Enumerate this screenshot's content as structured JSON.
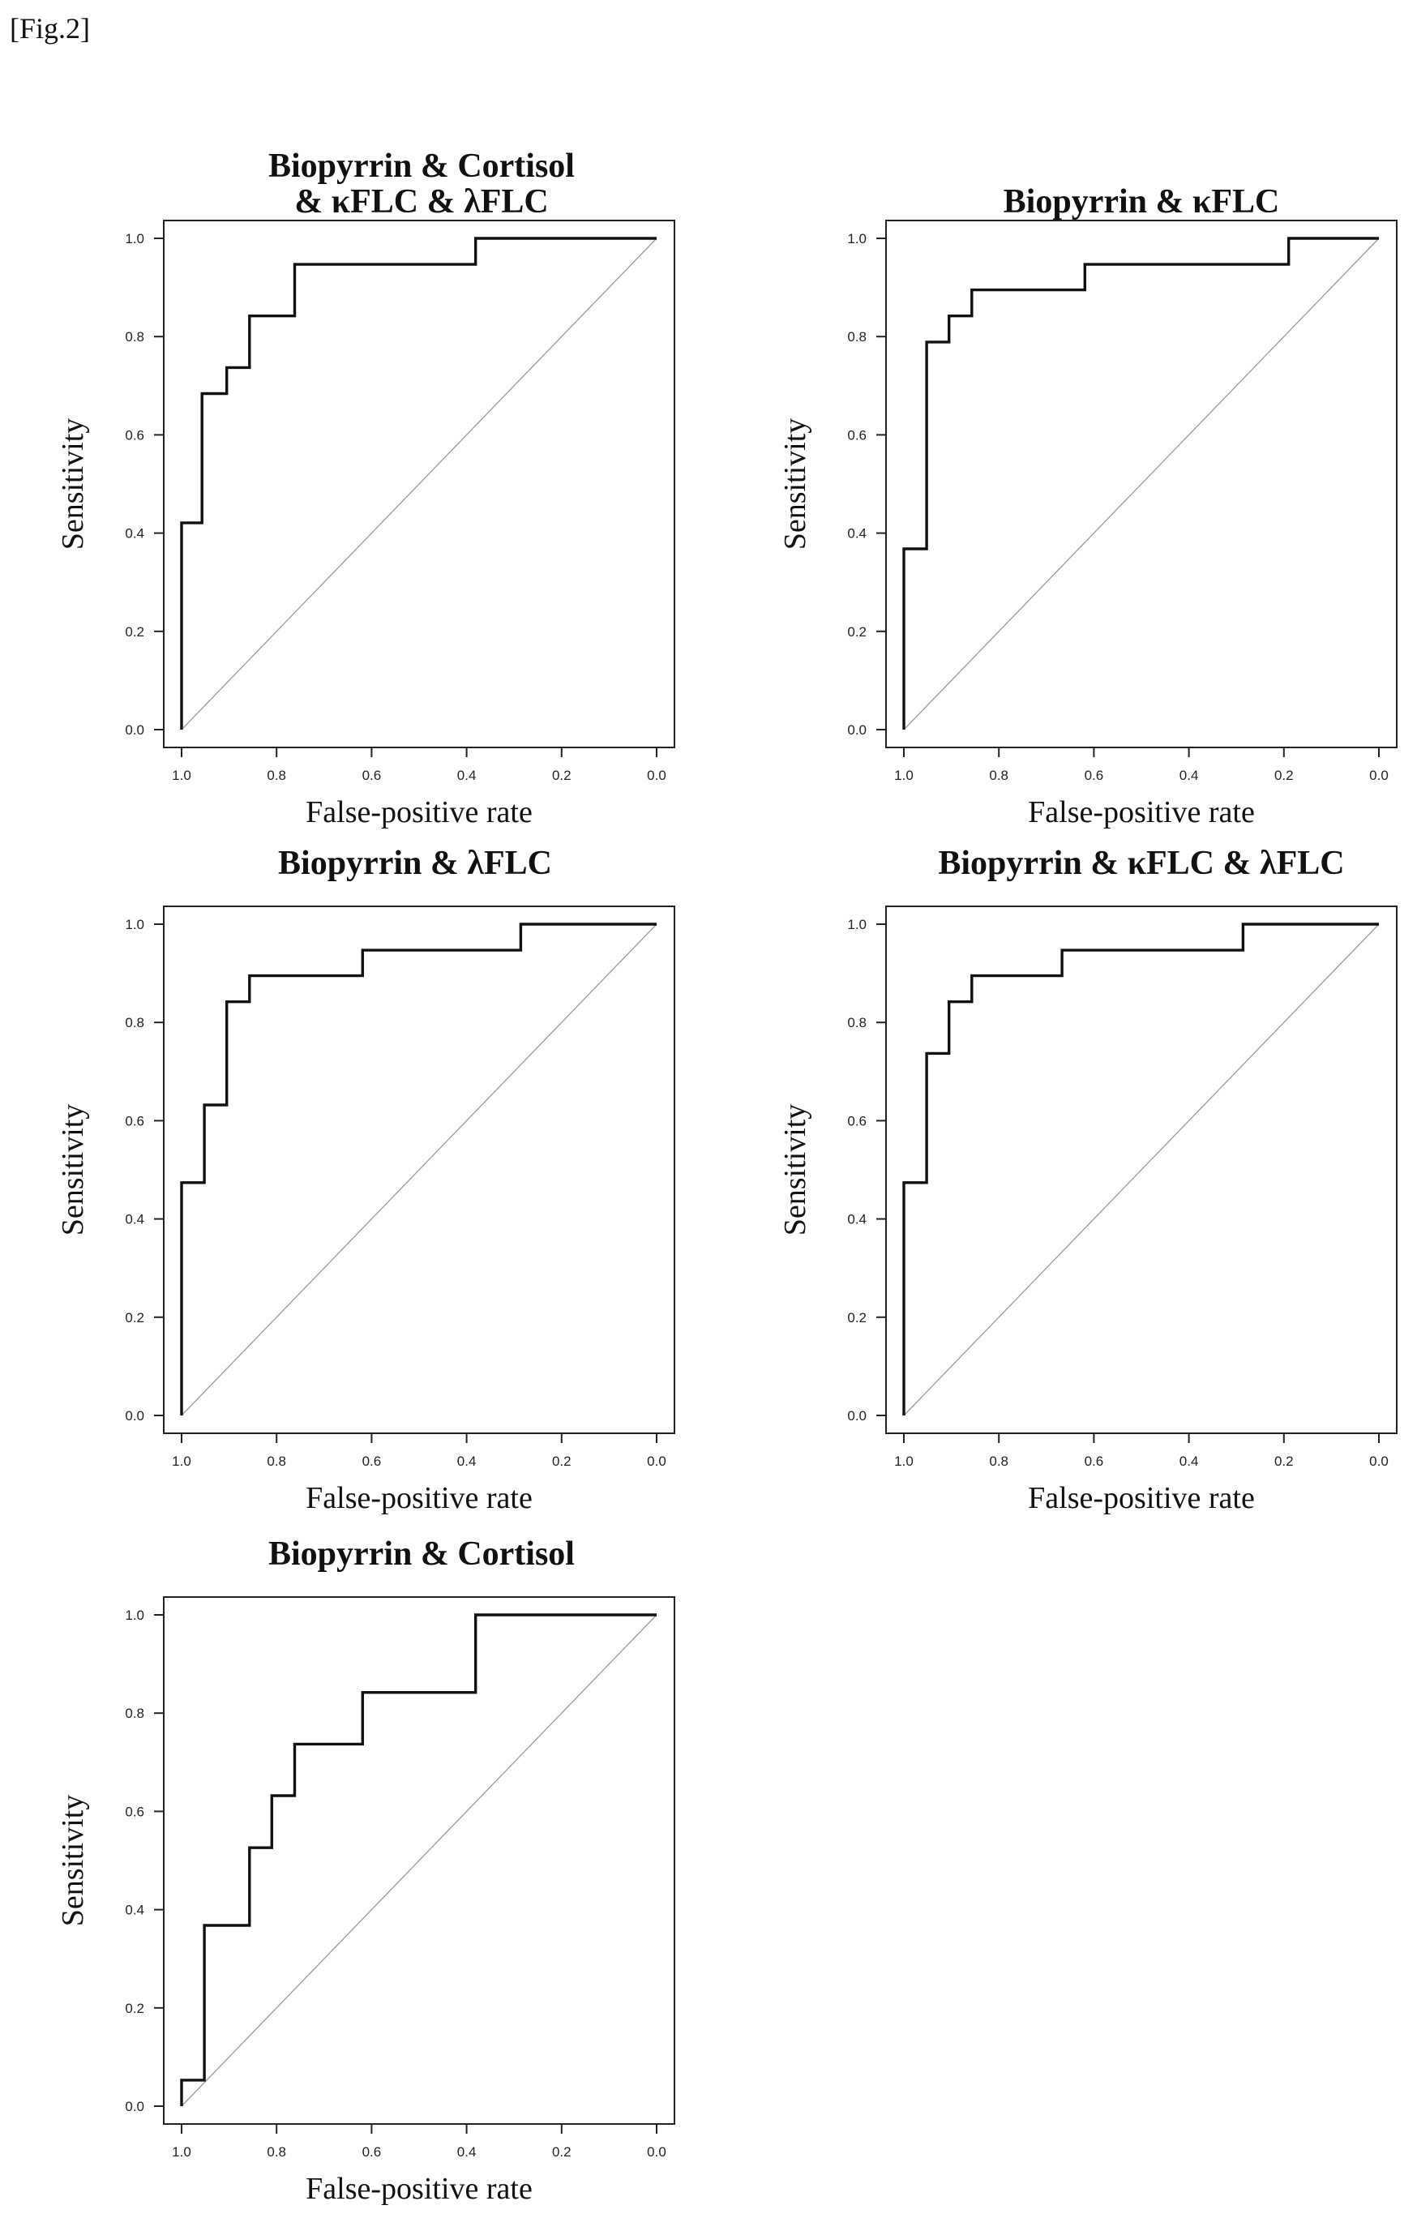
{
  "figure_label": "[Fig.2]",
  "chart_data": [
    {
      "type": "line",
      "title_lines": [
        "Biopyrrin & Cortisol",
        "& κFLC & λFLC"
      ],
      "xlabel": "False-positive rate",
      "ylabel": "Sensitivity",
      "xlim": [
        1.0,
        0.0
      ],
      "ylim": [
        0.0,
        1.0
      ],
      "x_ticks": [
        "1.0",
        "0.8",
        "0.6",
        "0.4",
        "0.2",
        "0.0"
      ],
      "y_ticks": [
        "0.0",
        "0.2",
        "0.4",
        "0.6",
        "0.8",
        "1.0"
      ],
      "diagonal": true,
      "x": [
        1.0,
        1.0,
        0.957,
        0.957,
        0.905,
        0.905,
        0.857,
        0.857,
        0.762,
        0.762,
        0.381,
        0.381,
        0.0
      ],
      "y": [
        0.0,
        0.421,
        0.421,
        0.684,
        0.684,
        0.737,
        0.737,
        0.842,
        0.842,
        0.947,
        0.947,
        1.0,
        1.0
      ]
    },
    {
      "type": "line",
      "title_lines": [
        "Biopyrrin & κFLC"
      ],
      "xlabel": "False-positive rate",
      "ylabel": "Sensitivity",
      "xlim": [
        1.0,
        0.0
      ],
      "ylim": [
        0.0,
        1.0
      ],
      "x_ticks": [
        "1.0",
        "0.8",
        "0.6",
        "0.4",
        "0.2",
        "0.0"
      ],
      "y_ticks": [
        "0.0",
        "0.2",
        "0.4",
        "0.6",
        "0.8",
        "1.0"
      ],
      "diagonal": true,
      "x": [
        1.0,
        1.0,
        0.952,
        0.952,
        0.905,
        0.905,
        0.857,
        0.857,
        0.619,
        0.619,
        0.19,
        0.19,
        0.0
      ],
      "y": [
        0.0,
        0.368,
        0.368,
        0.789,
        0.789,
        0.842,
        0.842,
        0.895,
        0.895,
        0.947,
        0.947,
        1.0,
        1.0
      ]
    },
    {
      "type": "line",
      "title_lines": [
        "Biopyrrin & λFLC"
      ],
      "xlabel": "False-positive rate",
      "ylabel": "Sensitivity",
      "xlim": [
        1.0,
        0.0
      ],
      "ylim": [
        0.0,
        1.0
      ],
      "x_ticks": [
        "1.0",
        "0.8",
        "0.6",
        "0.4",
        "0.2",
        "0.0"
      ],
      "y_ticks": [
        "0.0",
        "0.2",
        "0.4",
        "0.6",
        "0.8",
        "1.0"
      ],
      "diagonal": true,
      "x": [
        1.0,
        1.0,
        0.952,
        0.952,
        0.905,
        0.905,
        0.857,
        0.857,
        0.619,
        0.619,
        0.286,
        0.286,
        0.0
      ],
      "y": [
        0.0,
        0.474,
        0.474,
        0.632,
        0.632,
        0.842,
        0.842,
        0.895,
        0.895,
        0.947,
        0.947,
        1.0,
        1.0
      ]
    },
    {
      "type": "line",
      "title_lines": [
        "Biopyrrin & κFLC & λFLC"
      ],
      "xlabel": "False-positive rate",
      "ylabel": "Sensitivity",
      "xlim": [
        1.0,
        0.0
      ],
      "ylim": [
        0.0,
        1.0
      ],
      "x_ticks": [
        "1.0",
        "0.8",
        "0.6",
        "0.4",
        "0.2",
        "0.0"
      ],
      "y_ticks": [
        "0.0",
        "0.2",
        "0.4",
        "0.6",
        "0.8",
        "1.0"
      ],
      "diagonal": true,
      "x": [
        1.0,
        1.0,
        0.952,
        0.952,
        0.905,
        0.905,
        0.857,
        0.857,
        0.667,
        0.667,
        0.286,
        0.286,
        0.0
      ],
      "y": [
        0.0,
        0.474,
        0.474,
        0.737,
        0.737,
        0.842,
        0.842,
        0.895,
        0.895,
        0.947,
        0.947,
        1.0,
        1.0
      ]
    },
    {
      "type": "line",
      "title_lines": [
        "Biopyrrin & Cortisol"
      ],
      "xlabel": "False-positive rate",
      "ylabel": "Sensitivity",
      "xlim": [
        1.0,
        0.0
      ],
      "ylim": [
        0.0,
        1.0
      ],
      "x_ticks": [
        "1.0",
        "0.8",
        "0.6",
        "0.4",
        "0.2",
        "0.0"
      ],
      "y_ticks": [
        "0.0",
        "0.2",
        "0.4",
        "0.6",
        "0.8",
        "1.0"
      ],
      "diagonal": true,
      "x": [
        1.0,
        1.0,
        0.952,
        0.952,
        0.857,
        0.857,
        0.81,
        0.81,
        0.762,
        0.762,
        0.619,
        0.619,
        0.381,
        0.381,
        0.0
      ],
      "y": [
        0.0,
        0.053,
        0.053,
        0.368,
        0.368,
        0.526,
        0.526,
        0.632,
        0.632,
        0.737,
        0.737,
        0.842,
        0.842,
        1.0,
        1.0
      ]
    }
  ]
}
